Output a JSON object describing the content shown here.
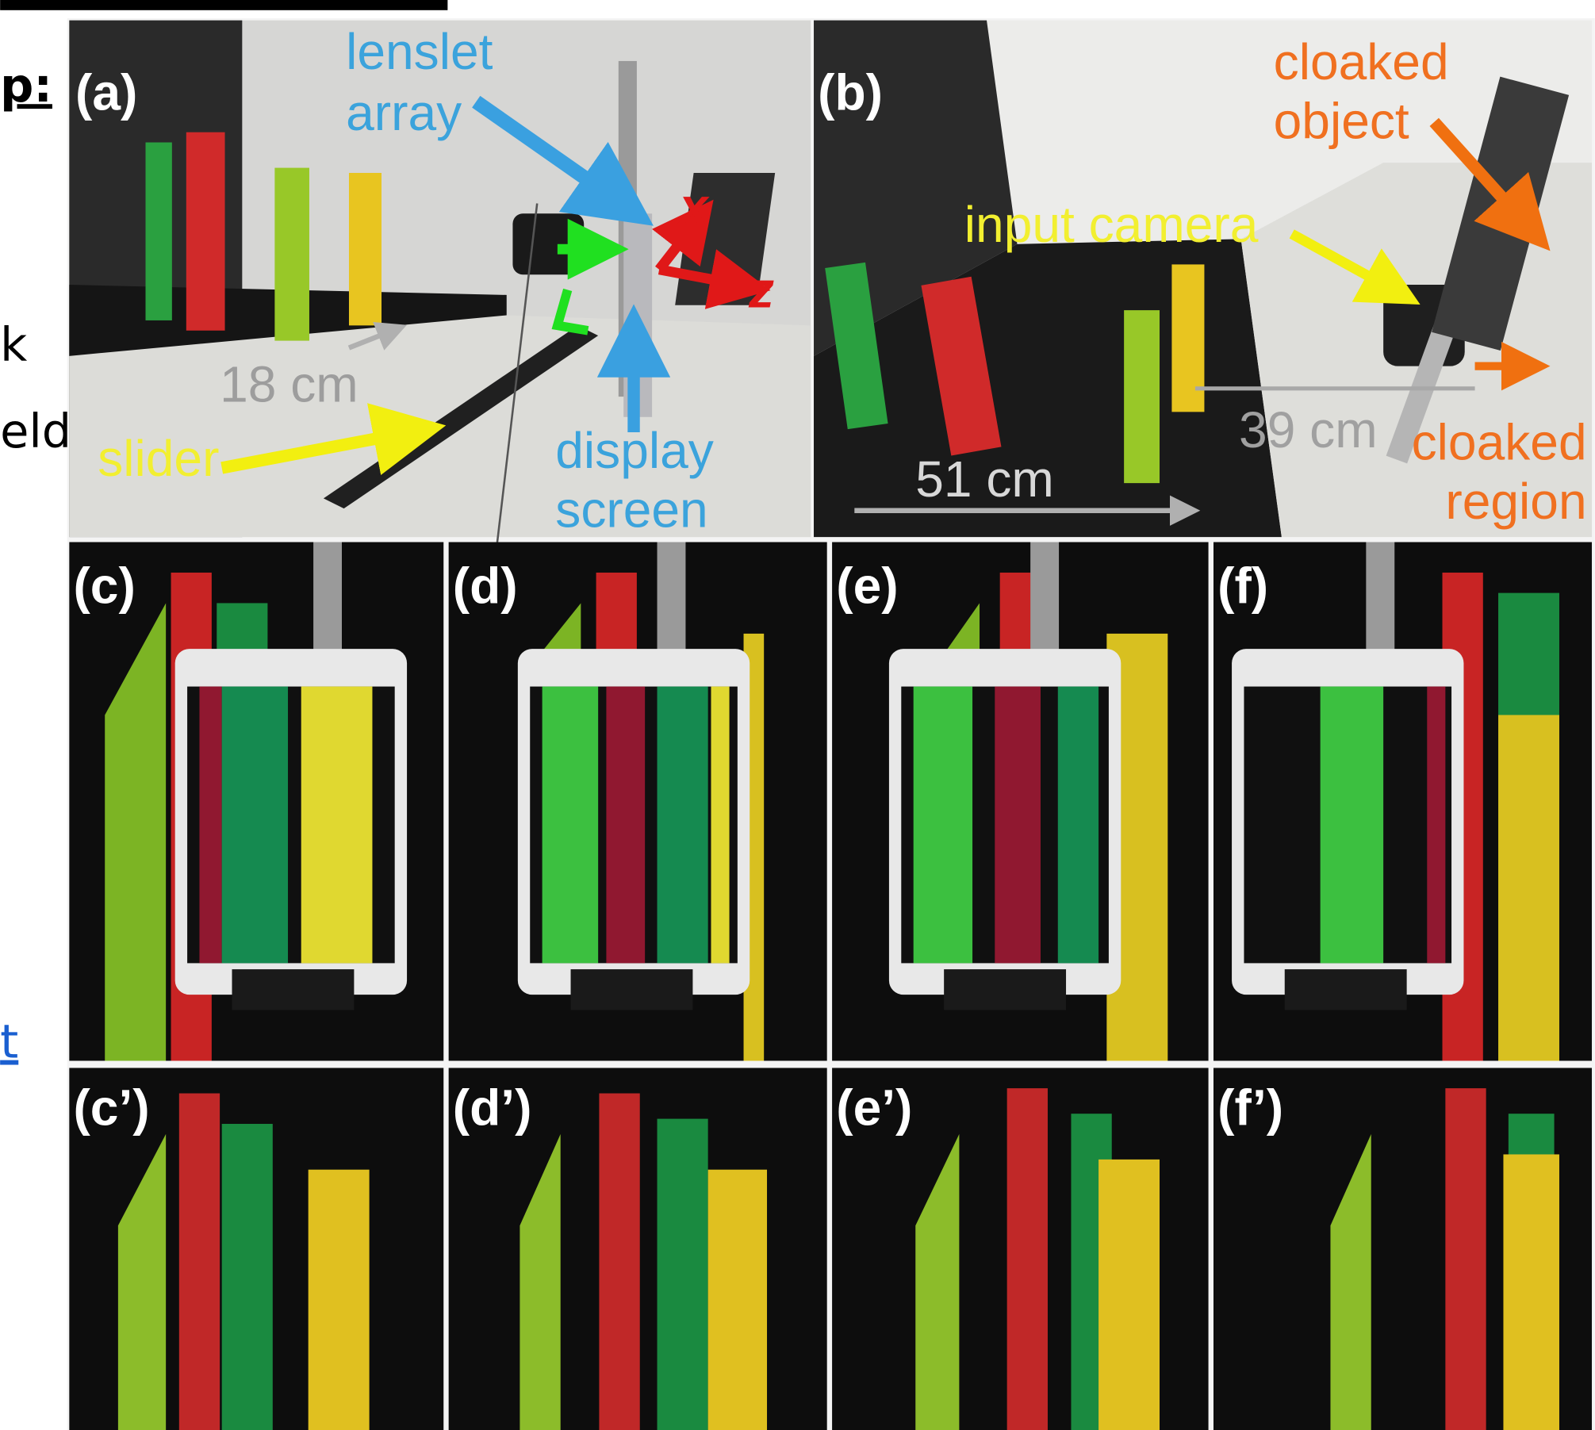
{
  "side_text": [
    "p:",
    "k",
    "eld",
    "t"
  ],
  "panels": [
    {
      "label": "(a)",
      "annotations": {
        "lenslet_array": [
          "lenslet",
          "array"
        ],
        "x": "x",
        "z": "z",
        "distance": "18 cm",
        "slider": "slider",
        "display_screen": [
          "display",
          "screen"
        ]
      }
    },
    {
      "label": "(b)",
      "annotations": {
        "cloaked_object": [
          "cloaked",
          "object"
        ],
        "input_camera": "input camera",
        "distance_near": "39 cm",
        "distance_far": "51 cm",
        "cloaked_region": [
          "cloaked",
          "region"
        ]
      }
    },
    {
      "label": "(c)"
    },
    {
      "label": "(d)"
    },
    {
      "label": "(e)"
    },
    {
      "label": "(f)"
    },
    {
      "label": "(c’)"
    },
    {
      "label": "(d’)"
    },
    {
      "label": "(e’)"
    },
    {
      "label": "(f’)"
    }
  ]
}
